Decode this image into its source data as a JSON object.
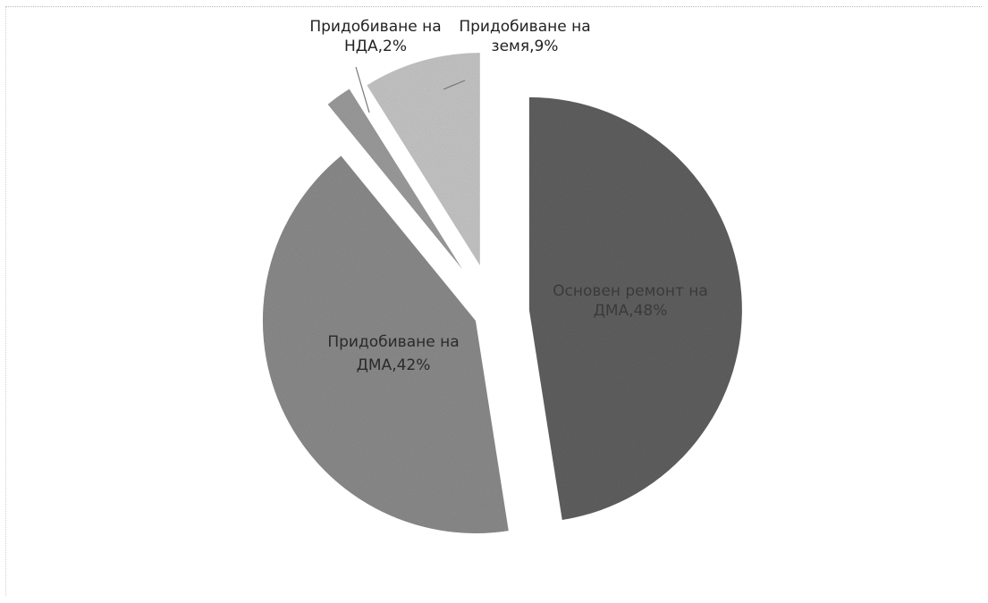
{
  "chart_data": {
    "type": "pie",
    "title": "",
    "legend": "none",
    "slices": [
      {
        "name": "Основен ремонт на ДМА",
        "value": 48,
        "label_lines": [
          "Основен ремонт на",
          "ДМА,48%"
        ],
        "color": "#5f5f5f"
      },
      {
        "name": "Придобиване на ДМА",
        "value": 42,
        "label_lines": [
          "Придобиване на",
          "ДМА,42%"
        ],
        "color": "#8a8a8a"
      },
      {
        "name": "Придобиване на НДА",
        "value": 2,
        "label_lines": [
          "Придобиване на",
          "НДА,2%"
        ],
        "color": "#9b9b9b"
      },
      {
        "name": "Придобиване на земя",
        "value": 9,
        "label_lines": [
          "Придобиване на",
          "земя,9%"
        ],
        "color": "#c4c4c4"
      }
    ]
  }
}
